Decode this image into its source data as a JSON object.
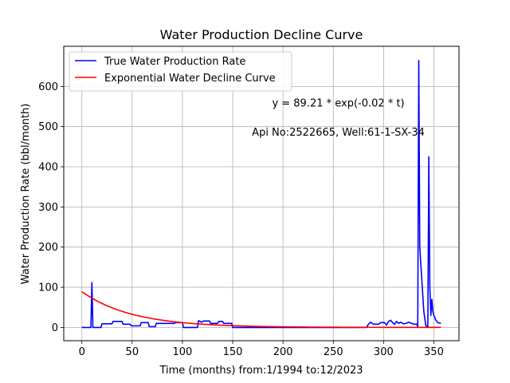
{
  "chart_data": {
    "type": "line",
    "title": "Water Production Decline Curve",
    "xlabel": "Time (months) from:1/1994 to:12/2023",
    "ylabel": "Water Production Rate (bbl/month)",
    "xlim": [
      -18,
      375
    ],
    "ylim": [
      -33,
      700
    ],
    "xticks": [
      0,
      50,
      100,
      150,
      200,
      250,
      300,
      350
    ],
    "yticks": [
      0,
      100,
      200,
      300,
      400,
      500,
      600
    ],
    "grid": true,
    "legend_position": "upper-left",
    "annotations": [
      {
        "text": "y = 89.21 * exp(-0.02 * t)",
        "x": 255,
        "y": 550
      },
      {
        "text": "Api No:2522665, Well:61-1-SX-34",
        "x": 255,
        "y": 478
      }
    ],
    "series": [
      {
        "name": "True Water Production Rate",
        "color": "#0000ff",
        "points": [
          [
            0,
            0
          ],
          [
            9,
            0
          ],
          [
            10,
            112
          ],
          [
            11,
            0
          ],
          [
            19,
            0
          ],
          [
            20,
            9
          ],
          [
            30,
            9
          ],
          [
            31,
            15
          ],
          [
            40,
            15
          ],
          [
            41,
            8
          ],
          [
            48,
            8
          ],
          [
            49,
            4
          ],
          [
            58,
            4
          ],
          [
            59,
            12
          ],
          [
            66,
            12
          ],
          [
            67,
            2
          ],
          [
            73,
            2
          ],
          [
            74,
            10
          ],
          [
            92,
            10
          ],
          [
            93,
            12
          ],
          [
            100,
            12
          ],
          [
            101,
            0
          ],
          [
            115,
            0
          ],
          [
            116,
            17
          ],
          [
            119,
            13
          ],
          [
            121,
            16
          ],
          [
            127,
            16
          ],
          [
            128,
            10
          ],
          [
            135,
            10
          ],
          [
            136,
            15
          ],
          [
            140,
            15
          ],
          [
            141,
            10
          ],
          [
            149,
            10
          ],
          [
            150,
            0
          ],
          [
            283,
            0
          ],
          [
            285,
            8
          ],
          [
            287,
            13
          ],
          [
            290,
            8
          ],
          [
            295,
            8
          ],
          [
            297,
            12
          ],
          [
            301,
            12
          ],
          [
            303,
            6
          ],
          [
            305,
            15
          ],
          [
            307,
            18
          ],
          [
            309,
            12
          ],
          [
            311,
            8
          ],
          [
            313,
            15
          ],
          [
            315,
            10
          ],
          [
            317,
            13
          ],
          [
            320,
            9
          ],
          [
            322,
            10
          ],
          [
            325,
            13
          ],
          [
            330,
            8
          ],
          [
            333,
            8
          ],
          [
            334,
            2
          ],
          [
            335,
            665
          ],
          [
            336,
            200
          ],
          [
            338,
            120
          ],
          [
            340,
            40
          ],
          [
            342,
            5
          ],
          [
            344,
            0
          ],
          [
            345,
            425
          ],
          [
            346,
            100
          ],
          [
            347,
            30
          ],
          [
            348,
            70
          ],
          [
            349,
            40
          ],
          [
            350,
            30
          ],
          [
            352,
            18
          ],
          [
            354,
            12
          ],
          [
            357,
            10
          ]
        ]
      },
      {
        "name": "Exponential Water Decline Curve",
        "color": "#ff0000",
        "model": {
          "a": 89.21,
          "b": 0.02,
          "t_start": 0,
          "t_end": 357
        }
      }
    ]
  }
}
